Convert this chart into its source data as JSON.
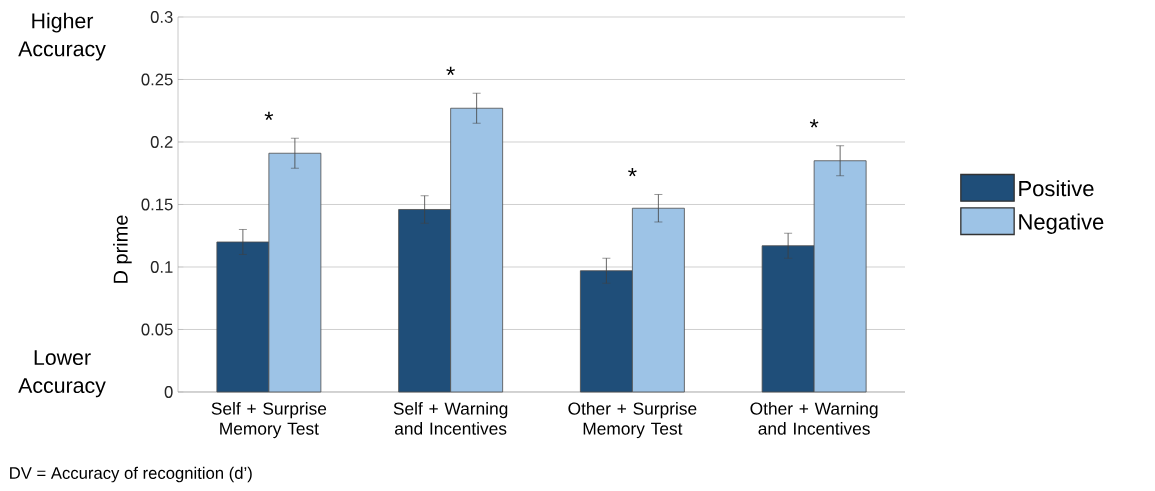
{
  "chart_data": {
    "type": "bar",
    "ylabel": "D prime",
    "categories": [
      "Self + Surprise Memory Test",
      "Self + Warning and Incentives",
      "Other + Surprise Memory Test",
      "Other + Warning and Incentives"
    ],
    "series": [
      {
        "name": "Positive",
        "color": "#1f4e79",
        "values": [
          0.12,
          0.146,
          0.097,
          0.117
        ],
        "errors": [
          0.01,
          0.011,
          0.01,
          0.01
        ]
      },
      {
        "name": "Negative",
        "color": "#9dc3e6",
        "values": [
          0.191,
          0.227,
          0.147,
          0.185
        ],
        "errors": [
          0.012,
          0.012,
          0.011,
          0.012
        ]
      }
    ],
    "ylim": [
      0,
      0.3
    ],
    "yticks": [
      0,
      0.05,
      0.1,
      0.15,
      0.2,
      0.25,
      0.3
    ],
    "grid": "y",
    "legend": "right",
    "annotations": [
      "Higher Accuracy",
      "Lower Accuracy",
      "DV = Accuracy of recognition (d’)",
      "*",
      "*",
      "*",
      "*"
    ]
  }
}
